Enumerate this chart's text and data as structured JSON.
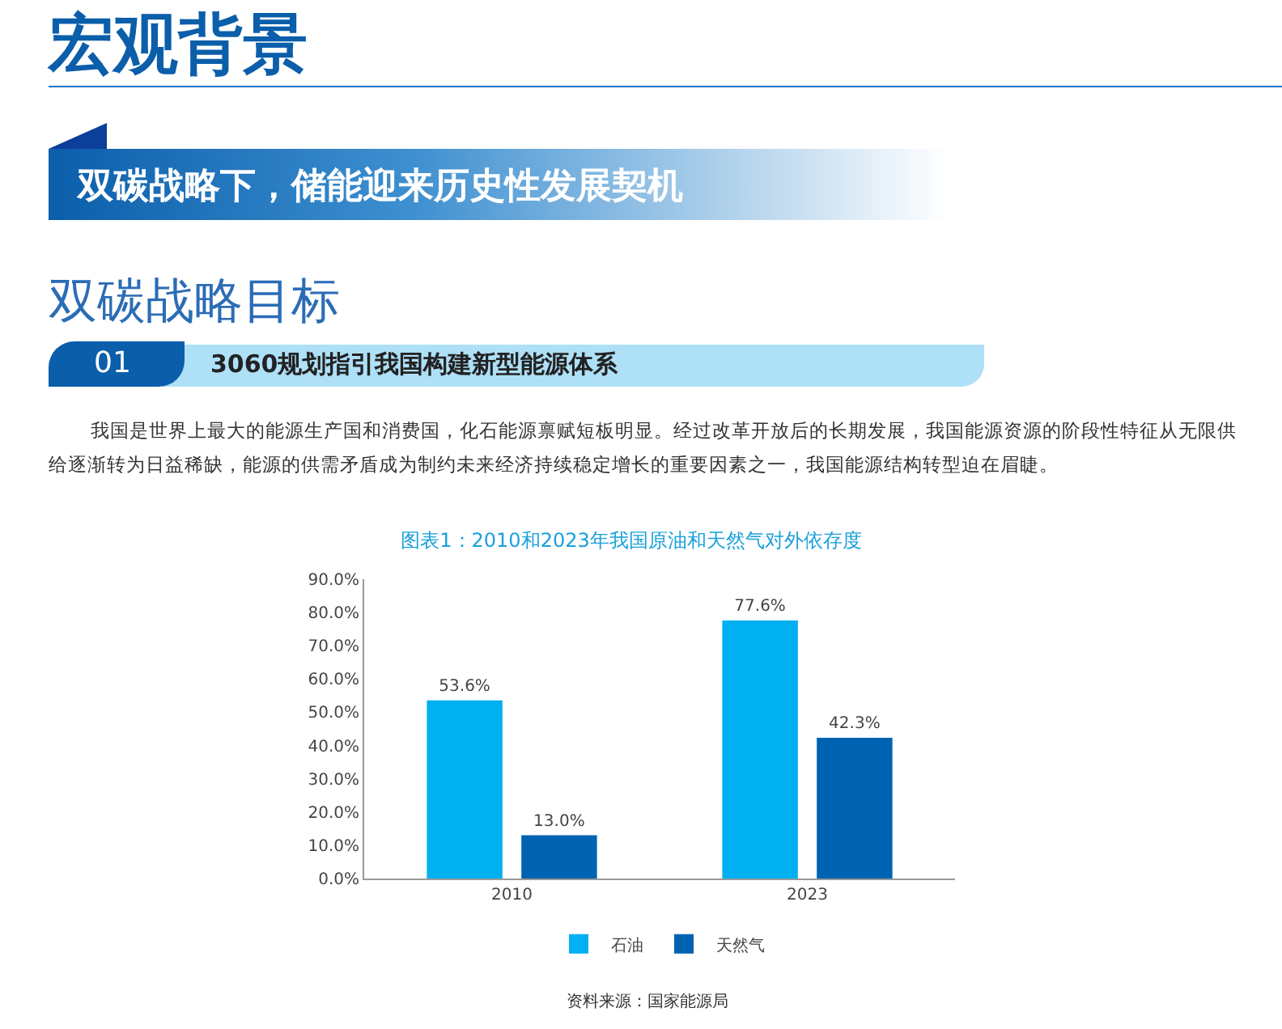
{
  "chart_data": {
    "type": "bar",
    "title": "图表1：2010和2023年我国原油和天然气对外依存度",
    "annotations": [
      "宏观背景",
      "双碳战略下，储能迎来历史性发展契机",
      "双碳战略目标",
      "01",
      "3060规划指引我国构建新型能源体系",
      "我国是世界上最大的能源生产国和消费国，化石能源禀赋短板明显。经过改革开放后的长期发展，我国能源资源的阶段性特征从无限供给逐渐转为日益稀缺，能源的供需矛盾成为制约未来经济持续稳定增长的重要因素之一，我国能源结构转型迫在眉睫。",
      "资料来源：国家能源局"
    ],
    "categories": [
      "2010",
      "2023"
    ],
    "series": [
      {
        "name": "石油",
        "color": "#00b0f0",
        "values": [
          53.6,
          77.6
        ],
        "value_labels": [
          "53.6%",
          "77.6%"
        ]
      },
      {
        "name": "天然气",
        "color": "#0063b1",
        "values": [
          13.0,
          42.3
        ],
        "value_labels": [
          "13.0%",
          "42.3%"
        ]
      }
    ],
    "ylim": [
      0,
      90
    ],
    "yticks": [
      {
        "value": 0,
        "label": "0.0%"
      },
      {
        "value": 10,
        "label": "10.0%"
      },
      {
        "value": 20,
        "label": "20.0%"
      },
      {
        "value": 30,
        "label": "30.0%"
      },
      {
        "value": 40,
        "label": "40.0%"
      },
      {
        "value": 50,
        "label": "50.0%"
      },
      {
        "value": 60,
        "label": "60.0%"
      },
      {
        "value": 70,
        "label": "70.0%"
      },
      {
        "value": 80,
        "label": "80.0%"
      },
      {
        "value": 90,
        "label": "90.0%"
      }
    ],
    "grid": false,
    "legend": "bottom"
  }
}
